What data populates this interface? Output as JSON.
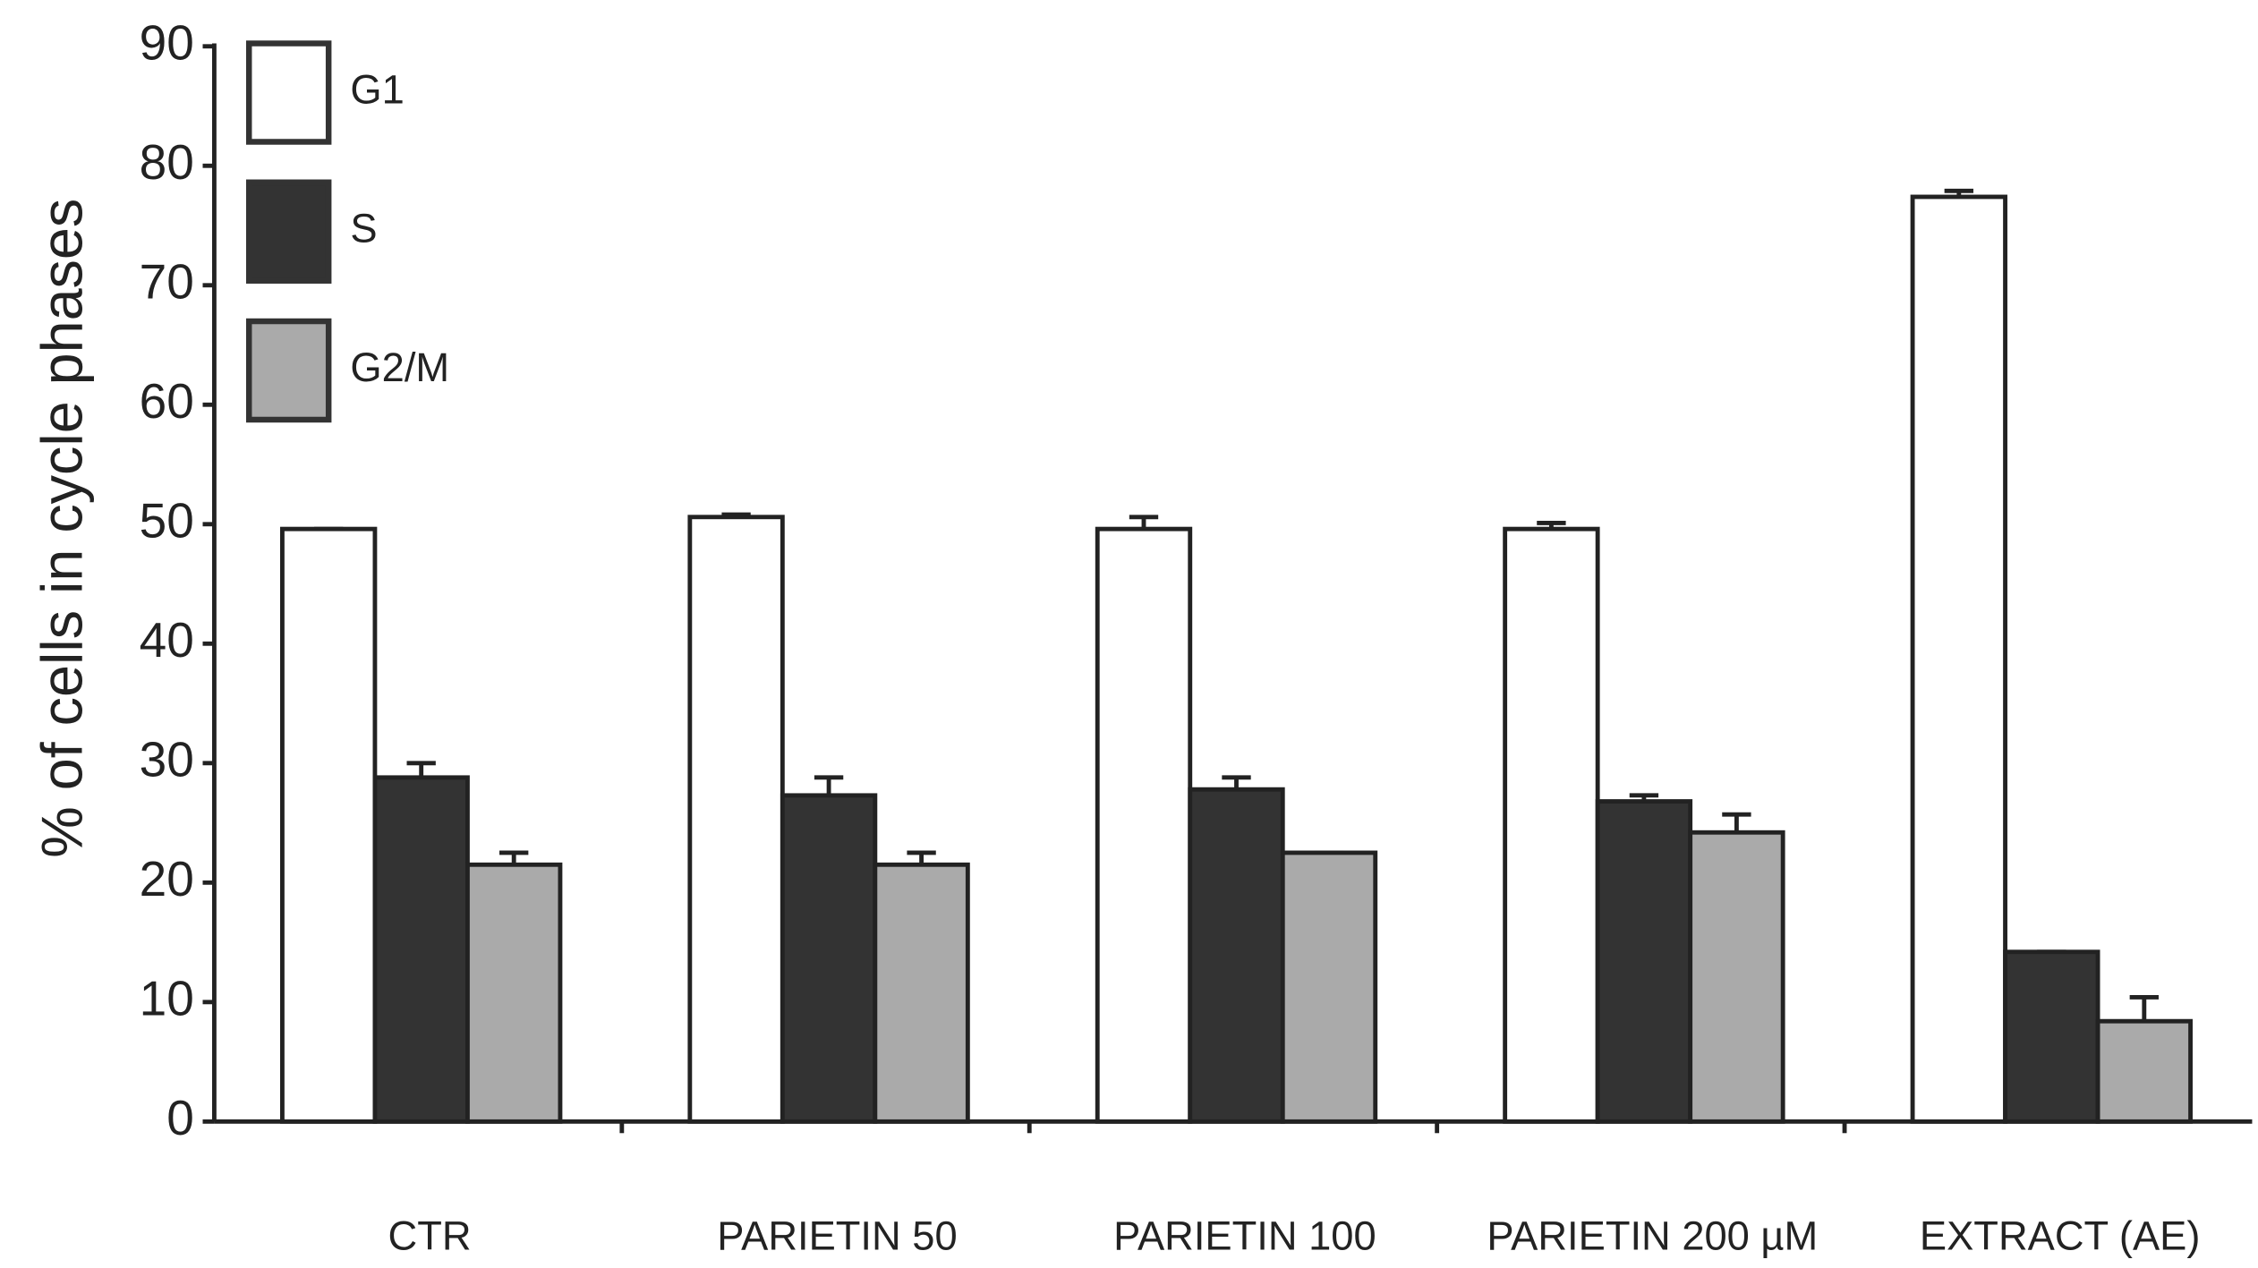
{
  "chart_data": {
    "type": "bar",
    "y_label": "% of cells in cycle phases",
    "categories": [
      "CTR",
      "PARIETIN 50",
      "PARIETIN 100",
      "PARIETIN 200 µM",
      "EXTRACT (AE)"
    ],
    "series": [
      {
        "name": "G1",
        "color": "#ffffff",
        "values": [
          49.6,
          50.6,
          49.6,
          49.6,
          77.4
        ],
        "errors": [
          0,
          0.2,
          1,
          0.5,
          0.5
        ]
      },
      {
        "name": "S",
        "color": "#333333",
        "values": [
          28.8,
          27.3,
          27.8,
          26.8,
          14.2
        ],
        "errors": [
          1.2,
          1.5,
          1,
          0.5,
          0
        ]
      },
      {
        "name": "G2/M",
        "color": "#aaaaaa",
        "values": [
          21.5,
          21.5,
          22.5,
          24.2,
          8.4
        ],
        "errors": [
          1,
          1,
          0,
          1.5,
          2
        ]
      }
    ],
    "ylim": [
      0,
      90
    ],
    "yticks": [
      0,
      10,
      20,
      30,
      40,
      50,
      60,
      70,
      80,
      90
    ]
  }
}
